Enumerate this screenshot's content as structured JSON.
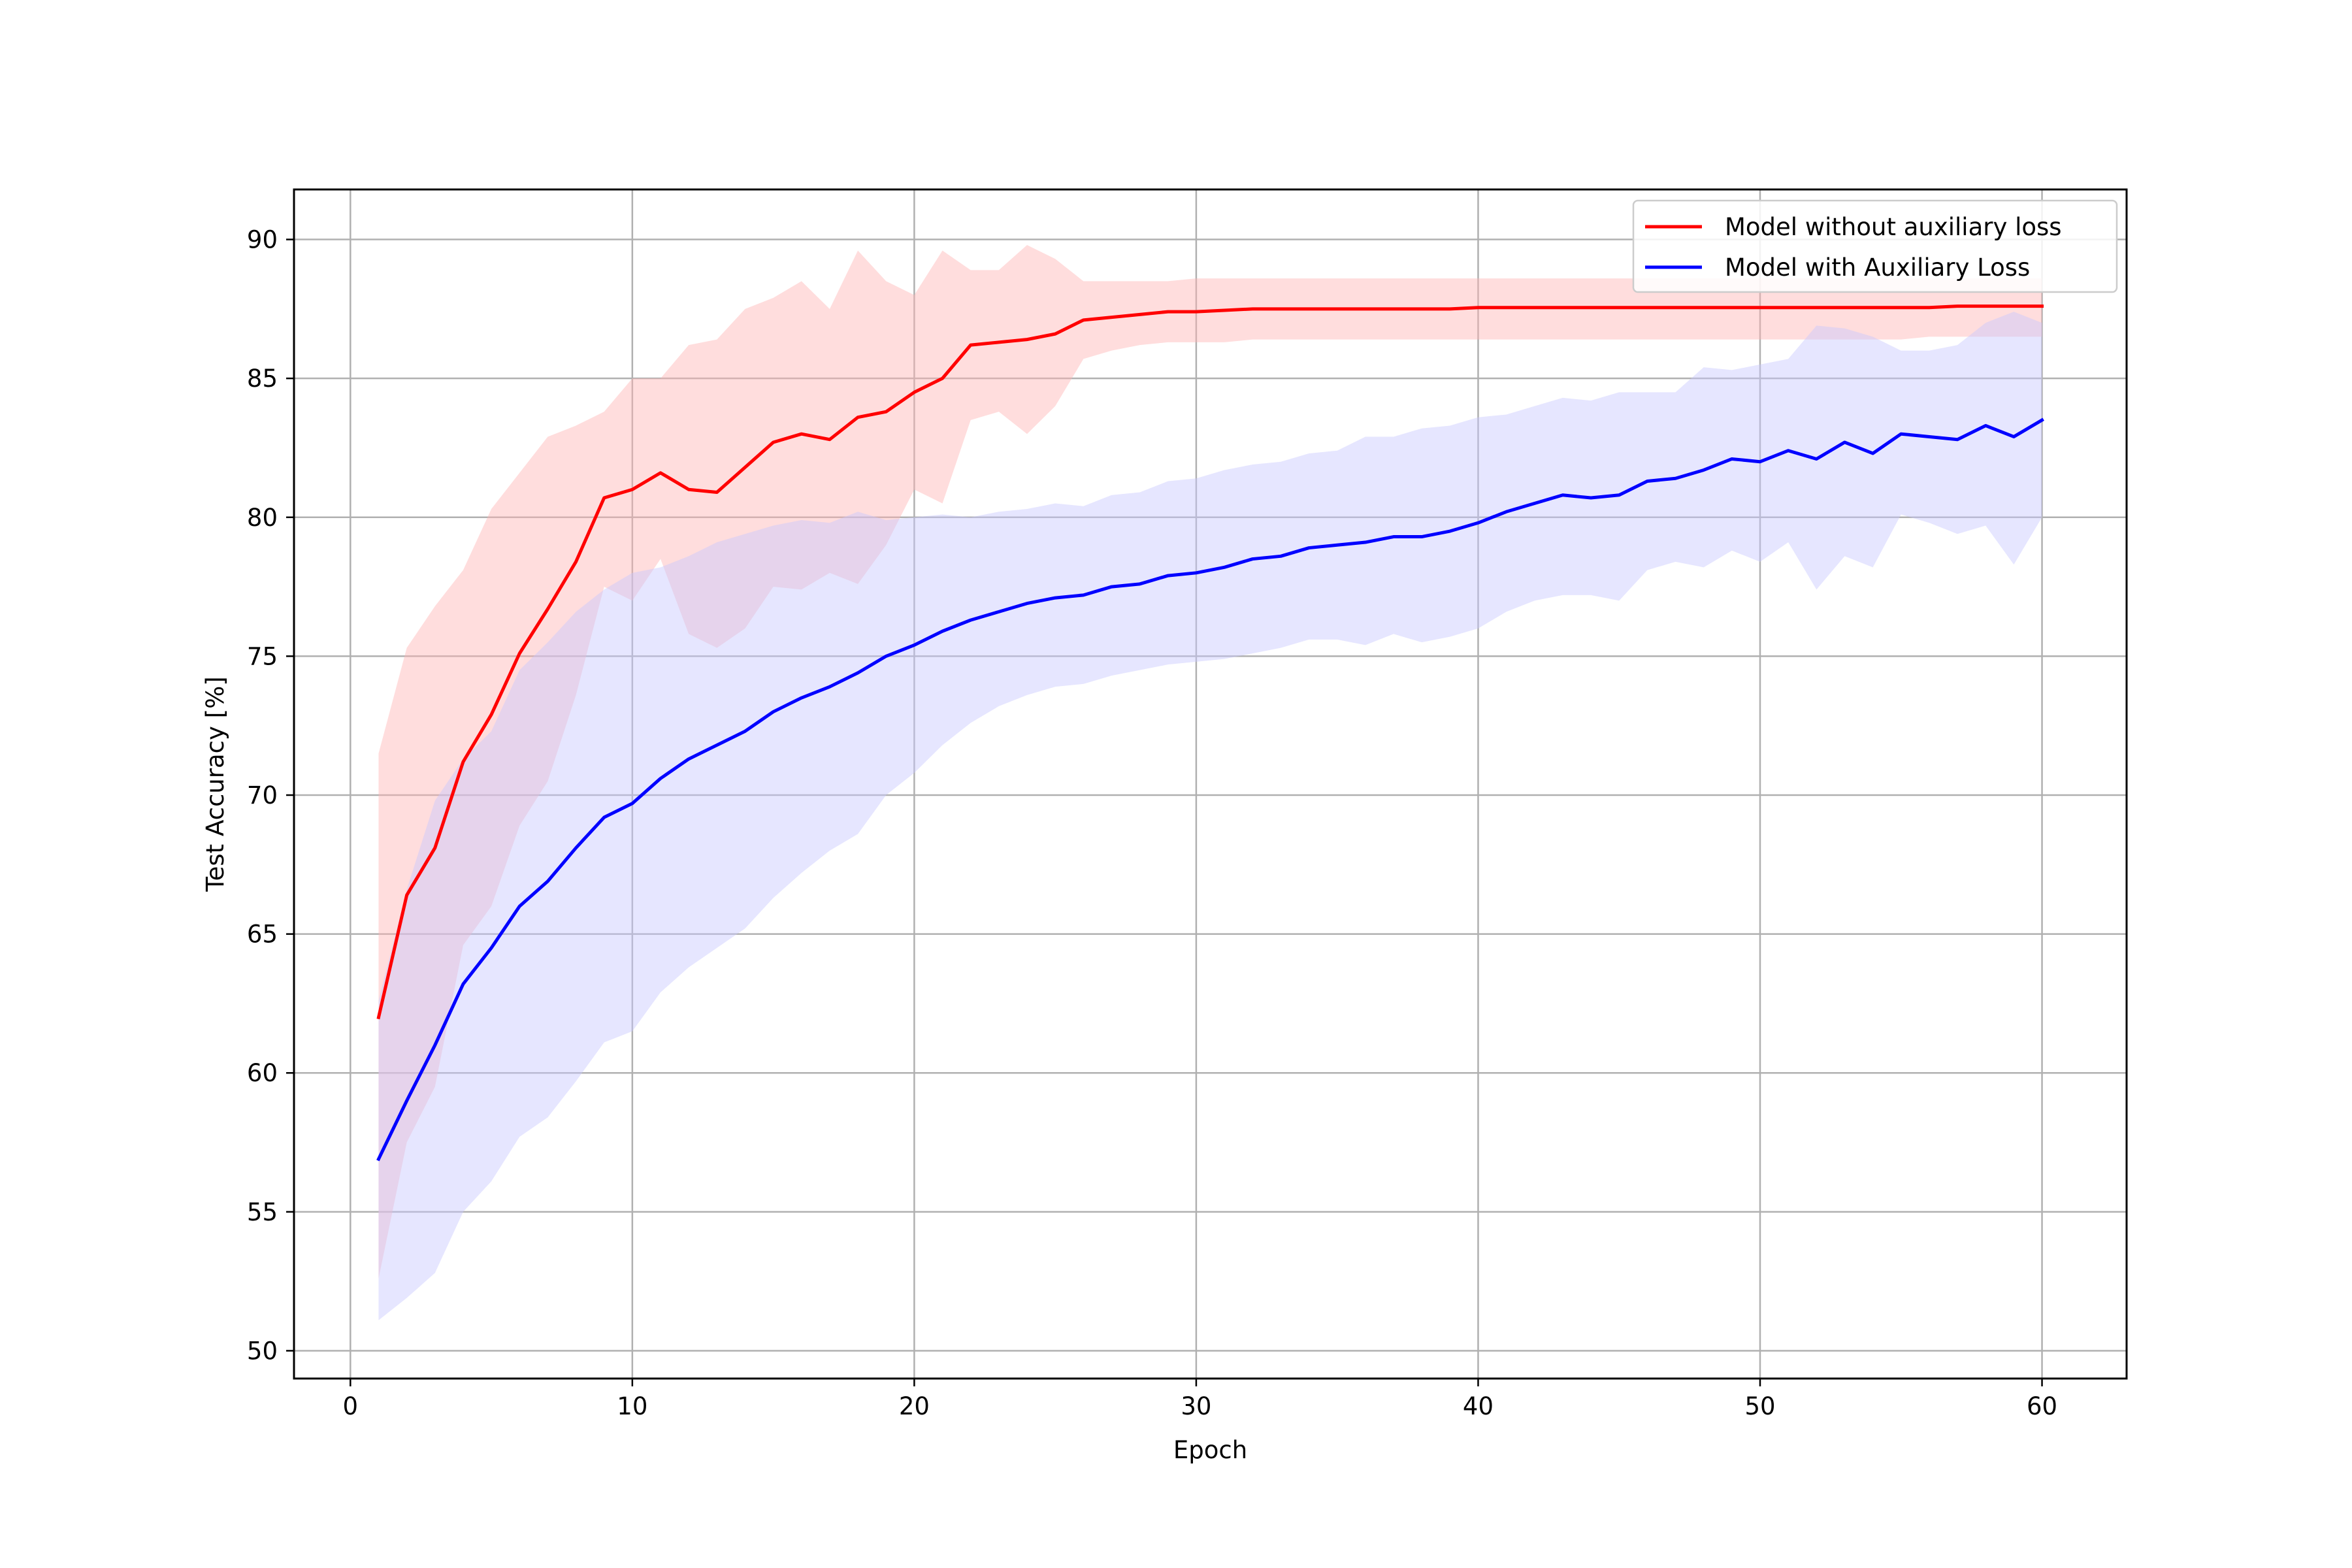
{
  "chart_data": {
    "type": "line",
    "xlabel": "Epoch",
    "ylabel": "Test Accuracy [%]",
    "xlim": [
      -2,
      63
    ],
    "ylim": [
      49,
      91.8
    ],
    "xticks": [
      0,
      10,
      20,
      30,
      40,
      50,
      60
    ],
    "yticks": [
      50,
      55,
      60,
      65,
      70,
      75,
      80,
      85,
      90
    ],
    "grid": true,
    "legend_position": "top-right",
    "x": [
      1,
      2,
      3,
      4,
      5,
      6,
      7,
      8,
      9,
      10,
      11,
      12,
      13,
      14,
      15,
      16,
      17,
      18,
      19,
      20,
      21,
      22,
      23,
      24,
      25,
      26,
      27,
      28,
      29,
      30,
      31,
      32,
      33,
      34,
      35,
      36,
      37,
      38,
      39,
      40,
      41,
      42,
      43,
      44,
      45,
      46,
      47,
      48,
      49,
      50,
      51,
      52,
      53,
      54,
      55,
      56,
      57,
      58,
      59,
      60
    ],
    "series": [
      {
        "name": "Model without auxiliary loss",
        "color": "#ff0000",
        "band_color": "#ffb3b3",
        "values": [
          62.0,
          66.4,
          68.1,
          71.2,
          72.9,
          75.1,
          76.7,
          78.4,
          80.7,
          81.0,
          81.6,
          81.0,
          80.9,
          81.8,
          82.7,
          83.0,
          82.8,
          83.6,
          83.8,
          84.5,
          85.0,
          86.2,
          86.3,
          86.4,
          86.6,
          87.1,
          87.2,
          87.3,
          87.4,
          87.4,
          87.45,
          87.5,
          87.5,
          87.5,
          87.5,
          87.5,
          87.5,
          87.5,
          87.5,
          87.55,
          87.55,
          87.55,
          87.55,
          87.55,
          87.55,
          87.55,
          87.55,
          87.55,
          87.55,
          87.55,
          87.55,
          87.55,
          87.55,
          87.55,
          87.55,
          87.55,
          87.6,
          87.6,
          87.6,
          87.6
        ],
        "upper": [
          71.5,
          75.3,
          76.8,
          78.1,
          80.3,
          81.6,
          82.9,
          83.3,
          83.8,
          85.0,
          85.0,
          86.2,
          86.4,
          87.5,
          87.9,
          88.5,
          87.5,
          89.6,
          88.5,
          88.0,
          89.6,
          88.9,
          88.9,
          89.8,
          89.3,
          88.5,
          88.5,
          88.5,
          88.5,
          88.6,
          88.6,
          88.6,
          88.6,
          88.6,
          88.6,
          88.6,
          88.6,
          88.6,
          88.6,
          88.6,
          88.6,
          88.6,
          88.6,
          88.6,
          88.6,
          88.6,
          88.6,
          88.6,
          88.6,
          88.6,
          88.6,
          88.6,
          88.6,
          88.6,
          88.6,
          88.6,
          88.6,
          88.6,
          88.6,
          88.6
        ],
        "lower": [
          52.6,
          57.5,
          59.5,
          64.6,
          66.0,
          68.9,
          70.5,
          73.6,
          77.5,
          77.0,
          78.5,
          75.8,
          75.3,
          76.0,
          77.5,
          77.4,
          78.0,
          77.6,
          79.0,
          81.0,
          80.5,
          83.5,
          83.8,
          83.0,
          84.0,
          85.7,
          86.0,
          86.2,
          86.3,
          86.3,
          86.3,
          86.4,
          86.4,
          86.4,
          86.4,
          86.4,
          86.4,
          86.4,
          86.4,
          86.4,
          86.4,
          86.4,
          86.4,
          86.4,
          86.4,
          86.4,
          86.4,
          86.4,
          86.4,
          86.4,
          86.4,
          86.4,
          86.4,
          86.4,
          86.4,
          86.5,
          86.5,
          86.5,
          86.5,
          86.5
        ]
      },
      {
        "name": "Model with Auxiliary Loss",
        "color": "#0000ff",
        "band_color": "#c8c8ff",
        "values": [
          56.9,
          59.0,
          61.0,
          63.2,
          64.5,
          66.0,
          66.9,
          68.1,
          69.2,
          69.7,
          70.6,
          71.3,
          71.8,
          72.3,
          73.0,
          73.5,
          73.9,
          74.4,
          75.0,
          75.4,
          75.9,
          76.3,
          76.6,
          76.9,
          77.1,
          77.2,
          77.5,
          77.6,
          77.9,
          78.0,
          78.2,
          78.5,
          78.6,
          78.9,
          79.0,
          79.1,
          79.3,
          79.3,
          79.5,
          79.8,
          80.2,
          80.5,
          80.8,
          80.7,
          80.8,
          81.3,
          81.4,
          81.7,
          82.1,
          82.0,
          82.4,
          82.1,
          82.7,
          82.3,
          83.0,
          82.9,
          82.8,
          83.3,
          82.9,
          83.5
        ],
        "upper": [
          62.6,
          66.6,
          69.8,
          71.3,
          72.3,
          74.5,
          75.5,
          76.6,
          77.4,
          78.0,
          78.2,
          78.6,
          79.1,
          79.4,
          79.7,
          79.9,
          79.8,
          80.2,
          79.9,
          80.0,
          80.1,
          80.0,
          80.2,
          80.3,
          80.5,
          80.4,
          80.8,
          80.9,
          81.3,
          81.4,
          81.7,
          81.9,
          82.0,
          82.3,
          82.4,
          82.9,
          82.9,
          83.2,
          83.3,
          83.6,
          83.7,
          84.0,
          84.3,
          84.2,
          84.5,
          84.5,
          84.5,
          85.4,
          85.3,
          85.5,
          85.7,
          86.9,
          86.8,
          86.5,
          86.0,
          86.0,
          86.2,
          87.0,
          87.4,
          87.0
        ],
        "lower": [
          51.1,
          51.9,
          52.8,
          55.0,
          56.1,
          57.7,
          58.4,
          59.7,
          61.1,
          61.5,
          62.9,
          63.8,
          64.5,
          65.2,
          66.3,
          67.2,
          68.0,
          68.6,
          70.0,
          70.8,
          71.8,
          72.6,
          73.2,
          73.6,
          73.9,
          74.0,
          74.3,
          74.5,
          74.7,
          74.8,
          74.9,
          75.1,
          75.3,
          75.6,
          75.6,
          75.4,
          75.8,
          75.5,
          75.7,
          76.0,
          76.6,
          77.0,
          77.2,
          77.2,
          77.0,
          78.1,
          78.4,
          78.2,
          78.8,
          78.4,
          79.1,
          77.4,
          78.6,
          78.2,
          80.1,
          79.8,
          79.4,
          79.7,
          78.3,
          80.0
        ]
      }
    ]
  }
}
